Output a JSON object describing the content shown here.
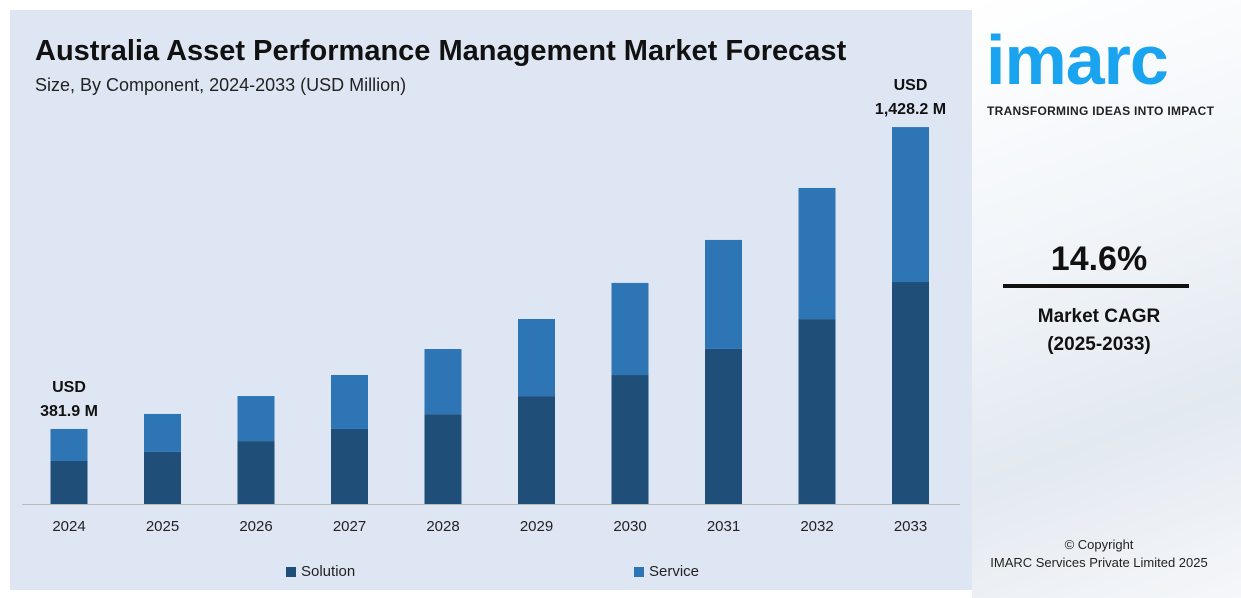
{
  "chart_data": {
    "type": "bar",
    "stacked": true,
    "title": "Australia Asset Performance Management Market Forecast",
    "subtitle": "Size, By Component, 2024-2033 (USD Million)",
    "categories": [
      "2024",
      "2025",
      "2026",
      "2027",
      "2028",
      "2029",
      "2030",
      "2031",
      "2032",
      "2033"
    ],
    "series": [
      {
        "name": "Solution",
        "color": "#1f4e79",
        "values": [
          219,
          251,
          289,
          331,
          382,
          445,
          518,
          609,
          712,
          841
        ]
      },
      {
        "name": "Service",
        "color": "#2e75b6",
        "values": [
          163,
          183,
          207,
          238,
          277,
          318,
          370,
          428,
          505,
          587
        ]
      }
    ],
    "annotations": [
      {
        "category": "2024",
        "line1": "USD",
        "line2": "381.9 M"
      },
      {
        "category": "2033",
        "line1": "USD",
        "line2": "1,428.2 M"
      }
    ],
    "grid": false,
    "legend": "bottom"
  },
  "brand": {
    "logo": "imarc",
    "tagline": "TRANSFORMING IDEAS INTO IMPACT",
    "color": "#1aa3ef"
  },
  "cagr": {
    "value": "14.6%",
    "label": "Market CAGR",
    "period": "(2025-2033)"
  },
  "copyright": {
    "line1": "© Copyright",
    "line2": "IMARC Services Private Limited 2025"
  }
}
